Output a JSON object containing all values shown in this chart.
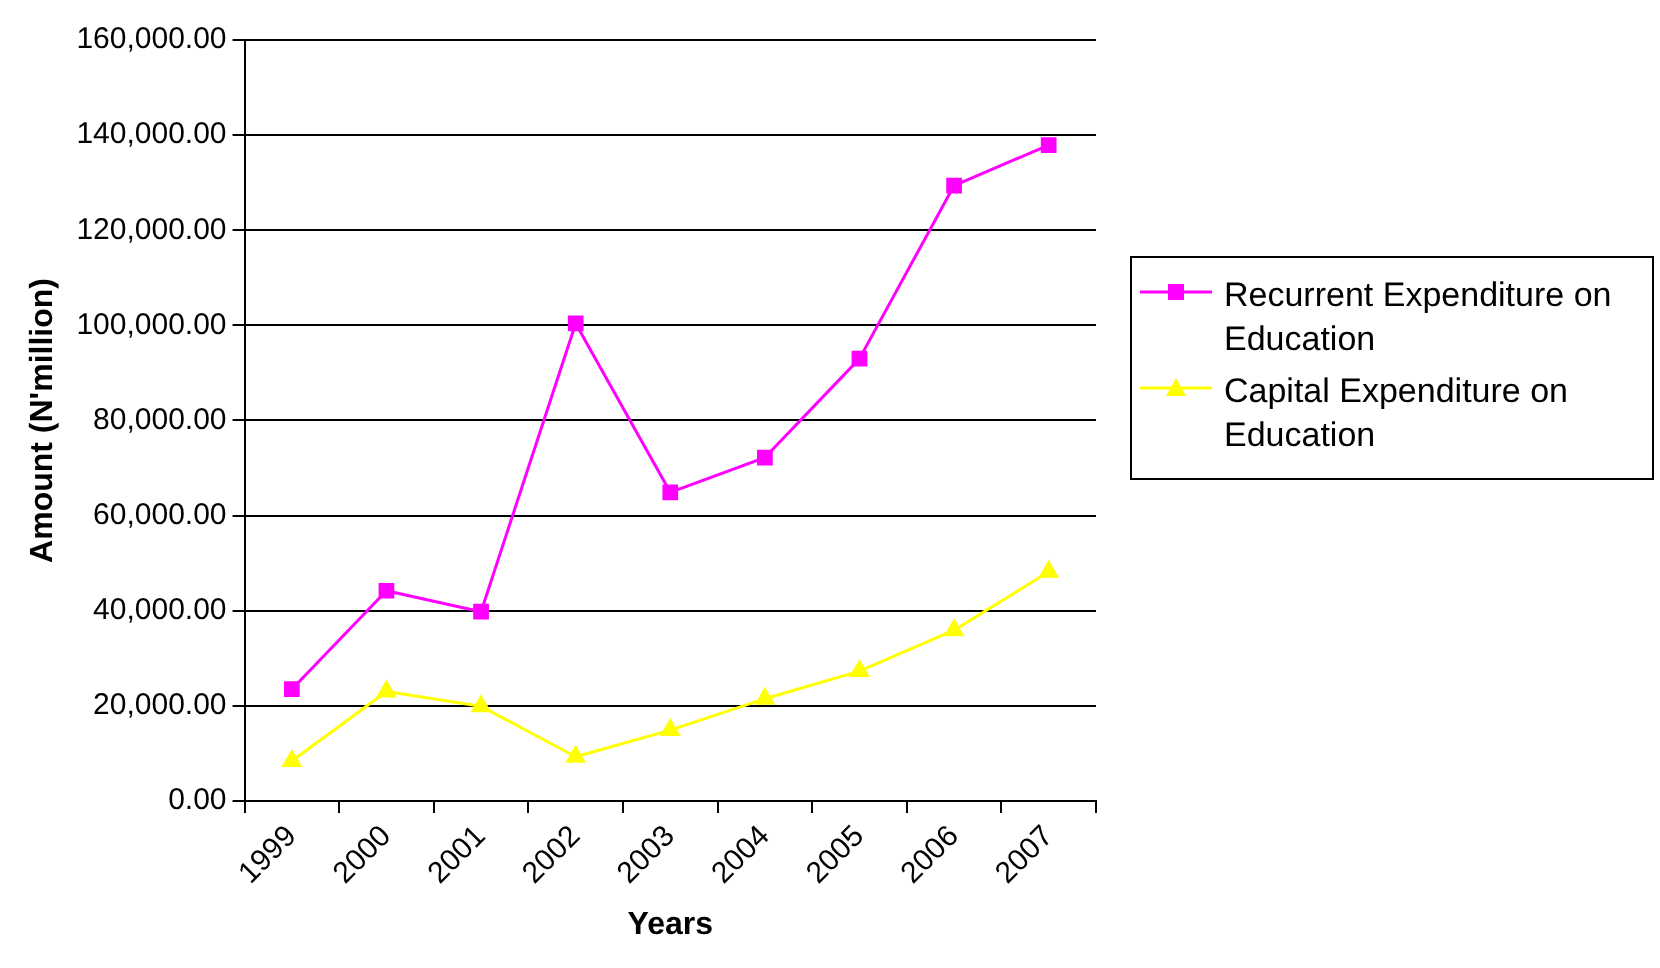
{
  "chart_data": {
    "type": "line",
    "xlabel": "Years",
    "ylabel": "Amount (N'million)",
    "categories": [
      "1999",
      "2000",
      "2001",
      "2002",
      "2003",
      "2004",
      "2005",
      "2006",
      "2007"
    ],
    "series": [
      {
        "name": "Recurrent Expenditure on Education",
        "color": "#ff00ff",
        "marker": "square",
        "values": [
          23500,
          44200,
          39800,
          100400,
          64900,
          72200,
          93000,
          129400,
          137900
        ]
      },
      {
        "name": "Capital Expenditure on Education",
        "color": "#ffff00",
        "marker": "triangle",
        "values": [
          8400,
          23000,
          19900,
          9300,
          14900,
          21500,
          27300,
          35900,
          48200
        ]
      }
    ],
    "ylim": [
      0,
      160000
    ],
    "yticks": [
      {
        "value": 0,
        "label": "0.00"
      },
      {
        "value": 20000,
        "label": "20,000.00"
      },
      {
        "value": 40000,
        "label": "40,000.00"
      },
      {
        "value": 60000,
        "label": "60,000.00"
      },
      {
        "value": 80000,
        "label": "80,000.00"
      },
      {
        "value": 100000,
        "label": "100,000.00"
      },
      {
        "value": 120000,
        "label": "120,000.00"
      },
      {
        "value": 140000,
        "label": "140,000.00"
      },
      {
        "value": 160000,
        "label": "160,000.00"
      }
    ],
    "grid": "y",
    "legend": "right"
  }
}
